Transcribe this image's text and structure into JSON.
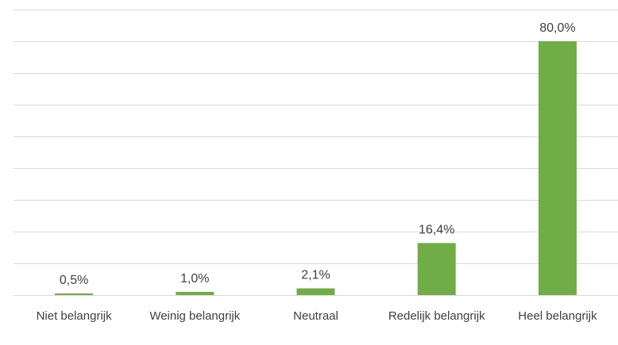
{
  "chart_data": {
    "type": "bar",
    "categories": [
      "Niet belangrijk",
      "Weinig belangrijk",
      "Neutraal",
      "Redelijk belangrijk",
      "Heel belangrijk"
    ],
    "values": [
      0.5,
      1.0,
      2.1,
      16.4,
      80.0
    ],
    "value_labels": [
      "0,5%",
      "1,0%",
      "2,1%",
      "16,4%",
      "80,0%"
    ],
    "color": "#70ad47",
    "ylim": [
      0,
      90
    ],
    "yticks": [
      0,
      10,
      20,
      30,
      40,
      50,
      60,
      70,
      80,
      90
    ],
    "grid": true
  }
}
